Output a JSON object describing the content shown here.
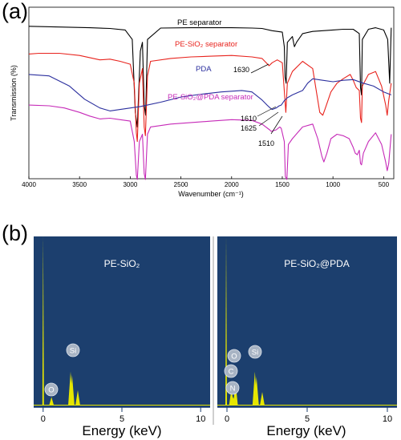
{
  "panel_labels": [
    "(a)",
    "(b)"
  ],
  "chart_data": [
    {
      "type": "line",
      "panel": "(a)",
      "title": "",
      "xlabel": "Wavenumber (cm⁻¹)",
      "ylabel": "Transmission (%)",
      "xlim": [
        4000,
        400
      ],
      "x_ticks": [
        4000,
        3500,
        3000,
        2500,
        2000,
        1500,
        1000,
        500
      ],
      "ylim": [
        0,
        100
      ],
      "grid": false,
      "series": [
        {
          "name": "PE separator",
          "color": "#000000",
          "points": [
            [
              4000,
              99
            ],
            [
              3700,
              98.5
            ],
            [
              3400,
              98
            ],
            [
              3200,
              97.5
            ],
            [
              3050,
              96.5
            ],
            [
              2980,
              90
            ],
            [
              2950,
              40
            ],
            [
              2930,
              30
            ],
            [
              2900,
              82
            ],
            [
              2880,
              88
            ],
            [
              2862,
              45
            ],
            [
              2848,
              38
            ],
            [
              2830,
              90
            ],
            [
              2700,
              97.8
            ],
            [
              2400,
              98
            ],
            [
              2000,
              98
            ],
            [
              1800,
              97.8
            ],
            [
              1700,
              97.5
            ],
            [
              1600,
              96
            ],
            [
              1500,
              95
            ],
            [
              1480,
              85
            ],
            [
              1472,
              64
            ],
            [
              1462,
              60
            ],
            [
              1450,
              88
            ],
            [
              1400,
              92
            ],
            [
              1380,
              85
            ],
            [
              1360,
              88
            ],
            [
              1300,
              94
            ],
            [
              1200,
              95.5
            ],
            [
              1000,
              96.5
            ],
            [
              900,
              97
            ],
            [
              800,
              97
            ],
            [
              740,
              94
            ],
            [
              728,
              57
            ],
            [
              718,
              52
            ],
            [
              710,
              90
            ],
            [
              650,
              97
            ],
            [
              580,
              98
            ],
            [
              500,
              96.5
            ],
            [
              460,
              90
            ],
            [
              440,
              60
            ],
            [
              425,
              98
            ]
          ]
        },
        {
          "name": "PE-SiO₂ separator",
          "color": "#e8231d",
          "points": [
            [
              4000,
              80
            ],
            [
              3900,
              80.5
            ],
            [
              3700,
              80.5
            ],
            [
              3500,
              79
            ],
            [
              3300,
              76
            ],
            [
              3200,
              76.5
            ],
            [
              3100,
              75
            ],
            [
              3000,
              73
            ],
            [
              2960,
              60
            ],
            [
              2940,
              26
            ],
            [
              2930,
              20
            ],
            [
              2910,
              60
            ],
            [
              2880,
              70
            ],
            [
              2862,
              30
            ],
            [
              2850,
              24
            ],
            [
              2830,
              65
            ],
            [
              2800,
              75
            ],
            [
              2600,
              77
            ],
            [
              2400,
              78
            ],
            [
              2200,
              78.5
            ],
            [
              2000,
              79
            ],
            [
              1800,
              78
            ],
            [
              1700,
              77
            ],
            [
              1630,
              72
            ],
            [
              1600,
              74
            ],
            [
              1550,
              76
            ],
            [
              1500,
              74
            ],
            [
              1475,
              50
            ],
            [
              1465,
              40
            ],
            [
              1450,
              60
            ],
            [
              1400,
              68
            ],
            [
              1300,
              75
            ],
            [
              1200,
              70
            ],
            [
              1130,
              40
            ],
            [
              1100,
              38
            ],
            [
              1080,
              42
            ],
            [
              1020,
              54
            ],
            [
              960,
              60
            ],
            [
              900,
              63
            ],
            [
              830,
              66
            ],
            [
              800,
              62
            ],
            [
              770,
              57
            ],
            [
              740,
              55
            ],
            [
              728,
              36
            ],
            [
              718,
              33
            ],
            [
              710,
              58
            ],
            [
              650,
              66
            ],
            [
              580,
              68
            ],
            [
              520,
              58
            ],
            [
              480,
              45
            ],
            [
              465,
              38
            ],
            [
              450,
              48
            ],
            [
              425,
              60
            ]
          ]
        },
        {
          "name": "PDA",
          "color": "#2b2f9e",
          "points": [
            [
              4000,
              66
            ],
            [
              3800,
              65
            ],
            [
              3600,
              58
            ],
            [
              3450,
              49
            ],
            [
              3300,
              43
            ],
            [
              3200,
              41
            ],
            [
              3100,
              42
            ],
            [
              2900,
              44
            ],
            [
              2700,
              47
            ],
            [
              2500,
              50.5
            ],
            [
              2300,
              52.5
            ],
            [
              2100,
              54
            ],
            [
              1900,
              55
            ],
            [
              1800,
              54
            ],
            [
              1700,
              48.5
            ],
            [
              1650,
              45
            ],
            [
              1620,
              43
            ],
            [
              1600,
              42
            ],
            [
              1560,
              43
            ],
            [
              1530,
              44.5
            ],
            [
              1510,
              45
            ],
            [
              1480,
              48
            ],
            [
              1450,
              50
            ],
            [
              1400,
              52
            ],
            [
              1350,
              53.5
            ],
            [
              1300,
              55
            ],
            [
              1250,
              60
            ],
            [
              1200,
              63
            ],
            [
              1100,
              62
            ],
            [
              1000,
              61
            ],
            [
              900,
              62
            ],
            [
              800,
              62.5
            ],
            [
              700,
              60
            ],
            [
              600,
              58
            ],
            [
              500,
              54
            ],
            [
              425,
              52
            ]
          ]
        },
        {
          "name": "PE-SiO₂@PDA separator",
          "color": "#c62ab8",
          "points": [
            [
              4000,
              45
            ],
            [
              3800,
              44.5
            ],
            [
              3650,
              43
            ],
            [
              3500,
              40
            ],
            [
              3400,
              37.5
            ],
            [
              3300,
              35.5
            ],
            [
              3200,
              36
            ],
            [
              3100,
              35
            ],
            [
              3000,
              34
            ],
            [
              2960,
              20
            ],
            [
              2940,
              -3
            ],
            [
              2930,
              -6
            ],
            [
              2910,
              20
            ],
            [
              2880,
              25
            ],
            [
              2862,
              -2
            ],
            [
              2850,
              -6
            ],
            [
              2830,
              25
            ],
            [
              2800,
              30
            ],
            [
              2600,
              32
            ],
            [
              2400,
              33
            ],
            [
              2200,
              34
            ],
            [
              2000,
              35
            ],
            [
              1800,
              34.5
            ],
            [
              1700,
              32
            ],
            [
              1625,
              28
            ],
            [
              1610,
              27
            ],
            [
              1560,
              28
            ],
            [
              1525,
              30
            ],
            [
              1510,
              29
            ],
            [
              1480,
              20
            ],
            [
              1470,
              -4
            ],
            [
              1455,
              -6
            ],
            [
              1440,
              18
            ],
            [
              1400,
              22
            ],
            [
              1300,
              30
            ],
            [
              1200,
              32
            ],
            [
              1150,
              22
            ],
            [
              1110,
              10
            ],
            [
              1090,
              6
            ],
            [
              1060,
              12
            ],
            [
              1020,
              22
            ],
            [
              960,
              25
            ],
            [
              900,
              24
            ],
            [
              840,
              22
            ],
            [
              800,
              16
            ],
            [
              780,
              12
            ],
            [
              760,
              11
            ],
            [
              740,
              14
            ],
            [
              728,
              5
            ],
            [
              718,
              4
            ],
            [
              700,
              12
            ],
            [
              650,
              20
            ],
            [
              580,
              26
            ],
            [
              520,
              18
            ],
            [
              480,
              6
            ],
            [
              465,
              0
            ],
            [
              450,
              5
            ],
            [
              425,
              25
            ]
          ]
        }
      ],
      "annotations": [
        "1630",
        "1610",
        "1625",
        "1510"
      ]
    },
    {
      "type": "bar",
      "panel": "(b)",
      "subtype": "eds-spectrum",
      "title": "PE-SiO₂",
      "xlabel": "Energy (keV)",
      "xlim": [
        -0.6,
        10.6
      ],
      "x_ticks": [
        0,
        5,
        10
      ],
      "ylim": [
        0,
        100
      ],
      "background": "#1c3f6e",
      "peak_color": "#e6e600",
      "peaks": [
        [
          0.0,
          100
        ],
        [
          0.53,
          5
        ],
        [
          1.74,
          20
        ],
        [
          1.84,
          18
        ],
        [
          2.2,
          9
        ]
      ],
      "element_labels": [
        "O",
        "Si"
      ]
    },
    {
      "type": "bar",
      "panel": "(b)",
      "subtype": "eds-spectrum",
      "title": "PE-SiO₂@PDA",
      "xlabel": "Energy (keV)",
      "xlim": [
        -0.6,
        10.6
      ],
      "x_ticks": [
        0,
        5,
        10
      ],
      "ylim": [
        0,
        100
      ],
      "background": "#1c3f6e",
      "peak_color": "#e6e600",
      "peaks": [
        [
          -0.05,
          100
        ],
        [
          0.28,
          10
        ],
        [
          0.39,
          5
        ],
        [
          0.53,
          14
        ],
        [
          1.74,
          20
        ],
        [
          1.84,
          17
        ],
        [
          2.2,
          8
        ]
      ],
      "element_labels": [
        "O",
        "Si",
        "C",
        "N"
      ]
    }
  ]
}
